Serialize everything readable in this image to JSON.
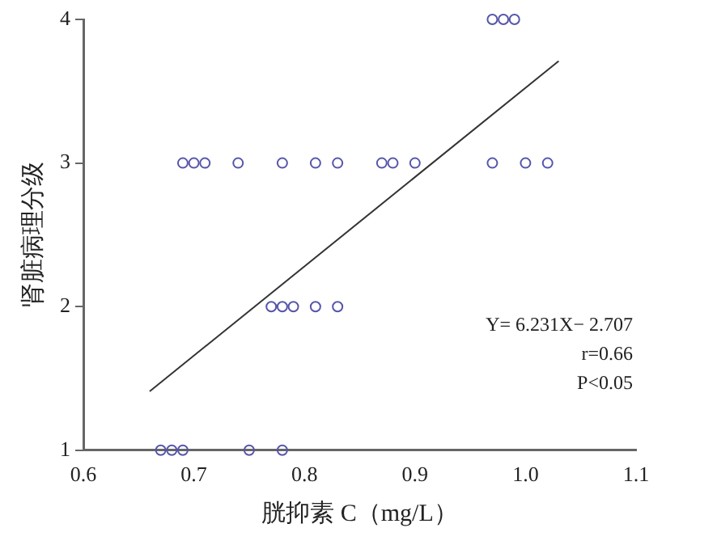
{
  "chart_data": {
    "type": "scatter",
    "xlabel": "胱抑素 C（mg/L）",
    "ylabel": "肾脏病理分级",
    "xlim": [
      0.6,
      1.1
    ],
    "xticks": [
      {
        "value": 0.6,
        "label": "0.6"
      },
      {
        "value": 0.7,
        "label": "0.7"
      },
      {
        "value": 0.8,
        "label": "0.8"
      },
      {
        "value": 0.9,
        "label": "0.9"
      },
      {
        "value": 1.0,
        "label": "1.0"
      },
      {
        "value": 1.1,
        "label": "1.1"
      }
    ],
    "ylim": [
      1,
      4
    ],
    "yticks": [
      1,
      2,
      3,
      4
    ],
    "grid": false,
    "legend": false,
    "marker": "circle",
    "series": [
      {
        "type": "scatter",
        "color": "#5555aa",
        "x": [
          0.97,
          0.98,
          0.99,
          0.69,
          0.7,
          0.71,
          0.74,
          0.78,
          0.81,
          0.83,
          0.87,
          0.88,
          0.9,
          0.97,
          1.0,
          1.02,
          0.77,
          0.78,
          0.79,
          0.81,
          0.83,
          0.67,
          0.68,
          0.69,
          0.75,
          0.78
        ],
        "values": [
          4,
          4,
          4,
          3,
          3,
          3,
          3,
          3,
          3,
          3,
          3,
          3,
          3,
          3,
          3,
          3,
          2,
          2,
          2,
          2,
          2,
          1,
          1,
          1,
          1,
          1
        ]
      },
      {
        "type": "line",
        "marker": "none",
        "color": "#333333",
        "x": [
          0.66,
          1.03
        ],
        "values": [
          1.41,
          3.71
        ]
      }
    ],
    "annotations": [
      "Y= 6.231X− 2.707",
      "r=0.66",
      "P<0.05"
    ]
  }
}
